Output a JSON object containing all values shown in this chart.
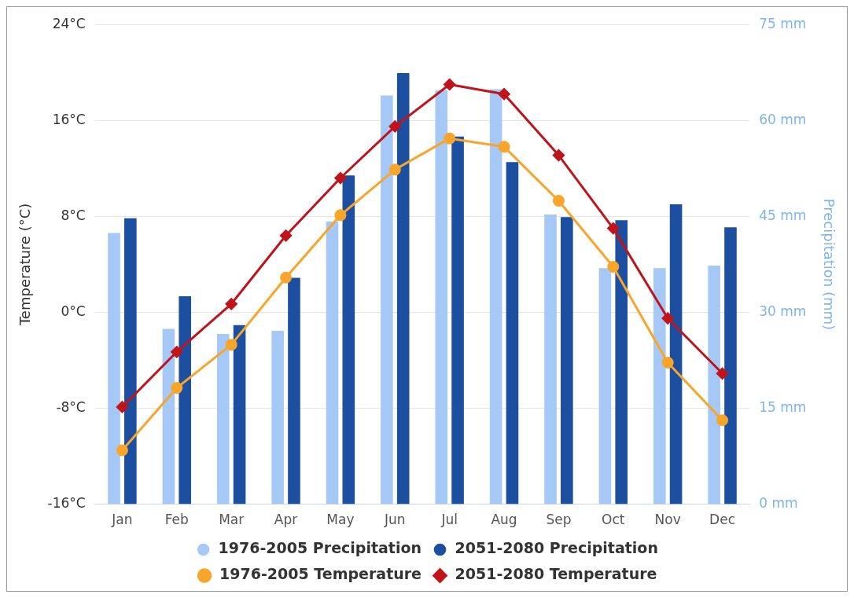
{
  "chart_data": {
    "type": "bar",
    "categories": [
      "Jan",
      "Feb",
      "Mar",
      "Apr",
      "May",
      "Jun",
      "Jul",
      "Aug",
      "Sep",
      "Oct",
      "Nov",
      "Dec"
    ],
    "ylabel": "Temperature (°C)",
    "y2label": "Precipitation (mm)",
    "ylim": [
      -16,
      24
    ],
    "yticks": [
      {
        "value": -16,
        "label": "-16°C"
      },
      {
        "value": -8,
        "label": "-8°C"
      },
      {
        "value": 0,
        "label": "0°C"
      },
      {
        "value": 8,
        "label": "8°C"
      },
      {
        "value": 16,
        "label": "16°C"
      },
      {
        "value": 24,
        "label": "24°C"
      }
    ],
    "y2lim": [
      0,
      75
    ],
    "y2ticks": [
      {
        "value": 0,
        "label": "0 mm"
      },
      {
        "value": 15,
        "label": "15 mm"
      },
      {
        "value": 30,
        "label": "30 mm"
      },
      {
        "value": 45,
        "label": "45 mm"
      },
      {
        "value": 60,
        "label": "60 mm"
      },
      {
        "value": 75,
        "label": "75 mm"
      }
    ],
    "grid": "y",
    "legend": "bottom",
    "series": [
      {
        "name": "1976-2005 Precipitation",
        "axis": "y2",
        "color": "#a6c8f7",
        "values": [
          42.4,
          27.4,
          26.6,
          27.1,
          44.2,
          63.9,
          64.7,
          64.9,
          45.3,
          36.9,
          36.9,
          37.3
        ]
      },
      {
        "name": "2051-2080 Precipitation",
        "axis": "y2",
        "color": "#1c4fa0",
        "values": [
          44.7,
          32.5,
          28.0,
          35.4,
          51.4,
          67.4,
          57.5,
          53.5,
          44.9,
          44.4,
          46.9,
          43.3
        ]
      },
      {
        "name": "1976-2005 Temperature",
        "type": "line",
        "color": "#f7a52b",
        "marker": "circle",
        "values": [
          -11.5,
          -6.3,
          -2.7,
          2.9,
          8.1,
          11.9,
          14.5,
          13.8,
          9.3,
          3.8,
          -4.2,
          -9.0
        ]
      },
      {
        "name": "2051-2080 Temperature",
        "type": "line",
        "color": "#c0141b",
        "marker": "diamond",
        "values": [
          -7.9,
          -3.3,
          0.7,
          6.4,
          11.2,
          15.5,
          19.0,
          18.2,
          13.1,
          7.0,
          -0.5,
          -5.1
        ]
      }
    ]
  }
}
